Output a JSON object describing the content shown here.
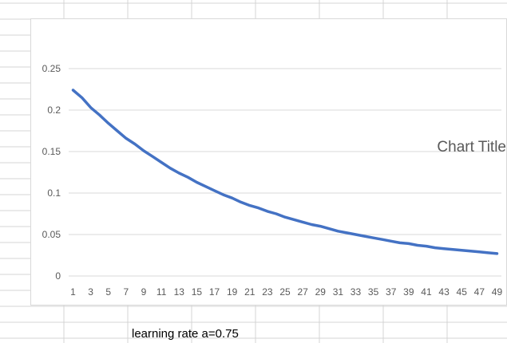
{
  "spreadsheet": {
    "cell_text": "learning rate a=0.75"
  },
  "chart_data": {
    "type": "line",
    "title": "Chart Title",
    "xlabel": "",
    "ylabel": "",
    "x": [
      1,
      2,
      3,
      4,
      5,
      6,
      7,
      8,
      9,
      10,
      11,
      12,
      13,
      14,
      15,
      16,
      17,
      18,
      19,
      20,
      21,
      22,
      23,
      24,
      25,
      26,
      27,
      28,
      29,
      30,
      31,
      32,
      33,
      34,
      35,
      36,
      37,
      38,
      39,
      40,
      41,
      42,
      43,
      44,
      45,
      46,
      47,
      48,
      49
    ],
    "x_tick_labels": [
      "1",
      "3",
      "5",
      "7",
      "9",
      "11",
      "13",
      "15",
      "17",
      "19",
      "21",
      "23",
      "25",
      "27",
      "29",
      "31",
      "33",
      "35",
      "37",
      "39",
      "41",
      "43",
      "45",
      "47",
      "49"
    ],
    "y_tick_labels": [
      "0",
      "0.05",
      "0.1",
      "0.15",
      "0.2",
      "0.25"
    ],
    "ylim": [
      0,
      0.25
    ],
    "grid": true,
    "series": [
      {
        "values": [
          0.224,
          0.215,
          0.203,
          0.194,
          0.184,
          0.175,
          0.166,
          0.159,
          0.151,
          0.144,
          0.137,
          0.13,
          0.124,
          0.119,
          0.113,
          0.108,
          0.103,
          0.098,
          0.094,
          0.089,
          0.085,
          0.082,
          0.078,
          0.075,
          0.071,
          0.068,
          0.065,
          0.062,
          0.06,
          0.057,
          0.054,
          0.052,
          0.05,
          0.048,
          0.046,
          0.044,
          0.042,
          0.04,
          0.039,
          0.037,
          0.036,
          0.034,
          0.033,
          0.032,
          0.031,
          0.03,
          0.029,
          0.028,
          0.027
        ]
      }
    ]
  },
  "colors": {
    "line": "#4472c4",
    "gridline": "#d9d9d9",
    "axis_text": "#595959",
    "title_text": "#595959",
    "sheet_grid": "#d4d4d4"
  }
}
